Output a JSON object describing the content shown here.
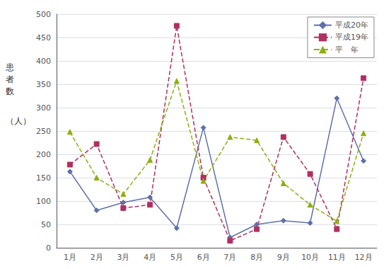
{
  "chart_data": {
    "type": "line",
    "categories": [
      "1月",
      "2月",
      "3月",
      "4月",
      "5月",
      "6月",
      "7月",
      "8月",
      "9月",
      "10月",
      "11月",
      "12月"
    ],
    "series": [
      {
        "name": "平成20年",
        "color": "#6070a8",
        "marker": "diamond",
        "line_style": "solid",
        "values": [
          163,
          80,
          97,
          108,
          42,
          257,
          22,
          50,
          58,
          53,
          320,
          186
        ]
      },
      {
        "name": "平成19年",
        "color": "#b03060",
        "marker": "square",
        "line_style": "dashed",
        "values": [
          178,
          222,
          85,
          92,
          475,
          150,
          15,
          40,
          237,
          158,
          40,
          363
        ]
      },
      {
        "name": "平　年",
        "color": "#8db010",
        "marker": "triangle",
        "line_style": "dashed",
        "values": [
          248,
          150,
          115,
          188,
          357,
          143,
          237,
          230,
          138,
          92,
          57,
          245
        ]
      }
    ],
    "annotations": [
      "患\n者\n数",
      "（人）"
    ],
    "ylim": [
      0,
      500
    ],
    "yticks": [
      0,
      50,
      100,
      150,
      200,
      250,
      300,
      350,
      400,
      450,
      500
    ],
    "grid": true,
    "legend": "upper right"
  }
}
